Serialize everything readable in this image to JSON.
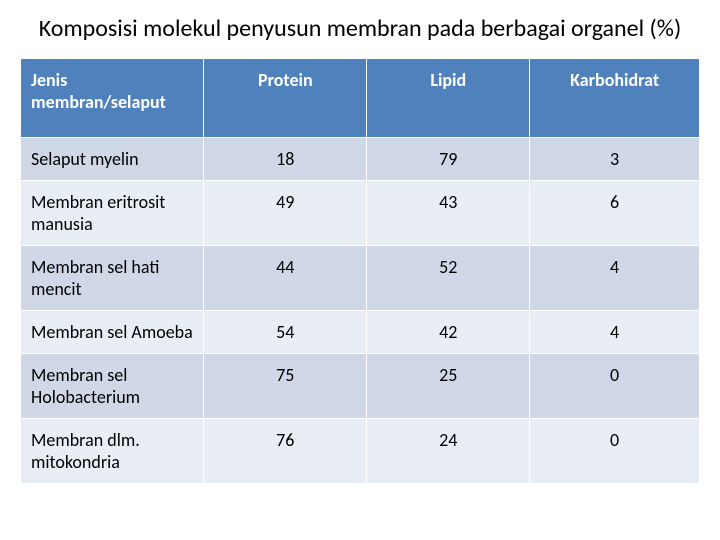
{
  "title": "Komposisi molekul penyusun membran pada berbagai organel (%)",
  "table": {
    "type": "table",
    "header_bg": "#4f81bd",
    "header_fg": "#ffffff",
    "band_colors": [
      "#d0d8e8",
      "#e9edf4"
    ],
    "border_color": "#ffffff",
    "font_size": 18,
    "columns": [
      {
        "label": "Jenis membran/selaput",
        "align": "left",
        "width_pct": 27
      },
      {
        "label": "Protein",
        "align": "center",
        "width_pct": 24
      },
      {
        "label": "Lipid",
        "align": "center",
        "width_pct": 24
      },
      {
        "label": "Karbohidrat",
        "align": "center",
        "width_pct": 25
      }
    ],
    "rows": [
      {
        "label": "Selaput myelin",
        "protein": 18,
        "lipid": 79,
        "karbohidrat": 3
      },
      {
        "label": "Membran eritrosit manusia",
        "protein": 49,
        "lipid": 43,
        "karbohidrat": 6
      },
      {
        "label": "Membran sel hati mencit",
        "protein": 44,
        "lipid": 52,
        "karbohidrat": 4
      },
      {
        "label": "Membran sel Amoeba",
        "protein": 54,
        "lipid": 42,
        "karbohidrat": 4
      },
      {
        "label": "Membran sel Holobacterium",
        "protein": 75,
        "lipid": 25,
        "karbohidrat": 0
      },
      {
        "label": "Membran dlm. mitokondria",
        "protein": 76,
        "lipid": 24,
        "karbohidrat": 0
      }
    ]
  }
}
